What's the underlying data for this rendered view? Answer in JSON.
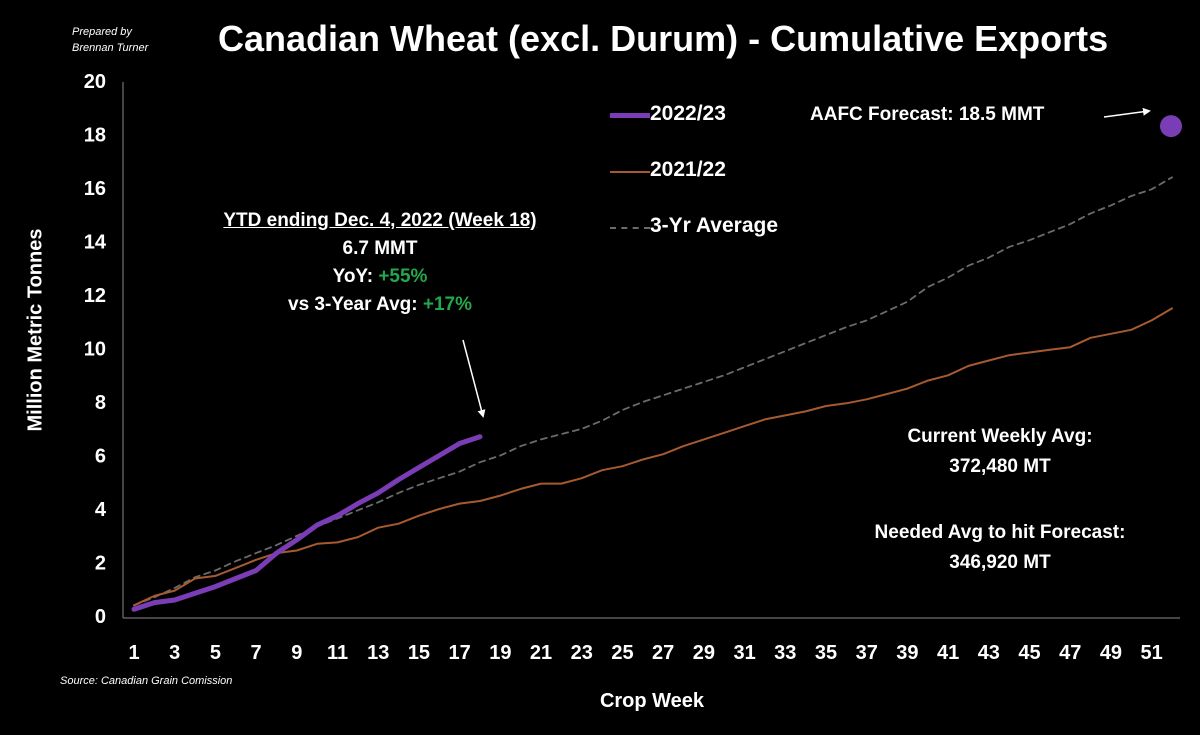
{
  "header": {
    "credit_line1": "Prepared by",
    "credit_line2": "Brennan Turner",
    "title": "Canadian Wheat (excl. Durum) - Cumulative Exports",
    "source": "Source: Canadian Grain Comission"
  },
  "legend": {
    "s1": "2022/23",
    "s2": "2021/22",
    "s3": "3-Yr Average"
  },
  "annotations": {
    "forecast_label": "AAFC Forecast: 18.5 MMT",
    "ytd_header": "YTD ending Dec. 4, 2022 (Week 18)",
    "ytd_total": "6.7 MMT",
    "yoy_label": "YoY: ",
    "yoy_value": "+55%",
    "avg_label": "vs 3-Year Avg: ",
    "avg_value": "+17%",
    "weekly_avg_label": "Current Weekly Avg:",
    "weekly_avg_value": "372,480 MT",
    "needed_label": "Needed Avg to hit Forecast:",
    "needed_value": "346,920 MT"
  },
  "colors": {
    "s2022": "#7b3db5",
    "s2021": "#a65a30",
    "avg": "#6b6b6b",
    "green": "#22a84a"
  },
  "chart_data": {
    "type": "line",
    "title": "Canadian Wheat (excl. Durum) - Cumulative Exports",
    "xlabel": "Crop Week",
    "ylabel": "Million Metric Tonnes",
    "xlim": [
      1,
      52
    ],
    "ylim": [
      0,
      20
    ],
    "xticks": [
      1,
      3,
      5,
      7,
      9,
      11,
      13,
      15,
      17,
      19,
      21,
      23,
      25,
      27,
      29,
      31,
      33,
      35,
      37,
      39,
      41,
      43,
      45,
      47,
      49,
      51
    ],
    "yticks": [
      0,
      2,
      4,
      6,
      8,
      10,
      12,
      14,
      16,
      18,
      20
    ],
    "grid": false,
    "legend_position": "top-right",
    "series": [
      {
        "name": "2022/23",
        "x": [
          1,
          2,
          3,
          4,
          5,
          6,
          7,
          8,
          9,
          10,
          11,
          12,
          13,
          14,
          15,
          16,
          17,
          18
        ],
        "values": [
          0.25,
          0.5,
          0.6,
          0.85,
          1.1,
          1.4,
          1.7,
          2.35,
          2.85,
          3.4,
          3.75,
          4.2,
          4.6,
          5.1,
          5.55,
          6.0,
          6.45,
          6.7
        ]
      },
      {
        "name": "2021/22",
        "x": [
          1,
          2,
          3,
          4,
          5,
          6,
          7,
          8,
          9,
          10,
          11,
          12,
          13,
          14,
          15,
          16,
          17,
          18,
          19,
          20,
          21,
          22,
          23,
          24,
          25,
          26,
          27,
          28,
          29,
          30,
          31,
          32,
          33,
          34,
          35,
          36,
          37,
          38,
          39,
          40,
          41,
          42,
          43,
          44,
          45,
          46,
          47,
          48,
          49,
          50,
          51,
          52
        ],
        "values": [
          0.4,
          0.75,
          0.95,
          1.4,
          1.5,
          1.8,
          2.1,
          2.35,
          2.45,
          2.7,
          2.75,
          2.95,
          3.3,
          3.45,
          3.75,
          4.0,
          4.2,
          4.3,
          4.5,
          4.75,
          4.95,
          4.95,
          5.15,
          5.45,
          5.6,
          5.85,
          6.05,
          6.35,
          6.6,
          6.85,
          7.1,
          7.35,
          7.5,
          7.65,
          7.85,
          7.95,
          8.1,
          8.3,
          8.5,
          8.8,
          9.0,
          9.35,
          9.55,
          9.75,
          9.85,
          9.95,
          10.05,
          10.4,
          10.55,
          10.7,
          11.05,
          11.5
        ]
      },
      {
        "name": "3-Yr Average",
        "x": [
          1,
          2,
          3,
          4,
          5,
          6,
          7,
          8,
          9,
          10,
          11,
          12,
          13,
          14,
          15,
          16,
          17,
          18,
          19,
          20,
          21,
          22,
          23,
          24,
          25,
          26,
          27,
          28,
          29,
          30,
          31,
          32,
          33,
          34,
          35,
          36,
          37,
          38,
          39,
          40,
          41,
          42,
          43,
          44,
          45,
          46,
          47,
          48,
          49,
          50,
          51,
          52
        ],
        "values": [
          0.4,
          0.7,
          1.05,
          1.45,
          1.7,
          2.05,
          2.35,
          2.65,
          3.0,
          3.35,
          3.65,
          3.95,
          4.25,
          4.6,
          4.9,
          5.15,
          5.4,
          5.75,
          6.0,
          6.35,
          6.6,
          6.8,
          7.0,
          7.3,
          7.7,
          8.0,
          8.25,
          8.5,
          8.75,
          9.0,
          9.3,
          9.6,
          9.9,
          10.2,
          10.5,
          10.8,
          11.05,
          11.4,
          11.75,
          12.3,
          12.65,
          13.1,
          13.4,
          13.8,
          14.05,
          14.35,
          14.65,
          15.05,
          15.35,
          15.7,
          15.95,
          16.4
        ]
      }
    ],
    "points": [
      {
        "label": "AAFC Forecast: 18.5 MMT",
        "x": 52,
        "y": 18.5
      }
    ]
  }
}
